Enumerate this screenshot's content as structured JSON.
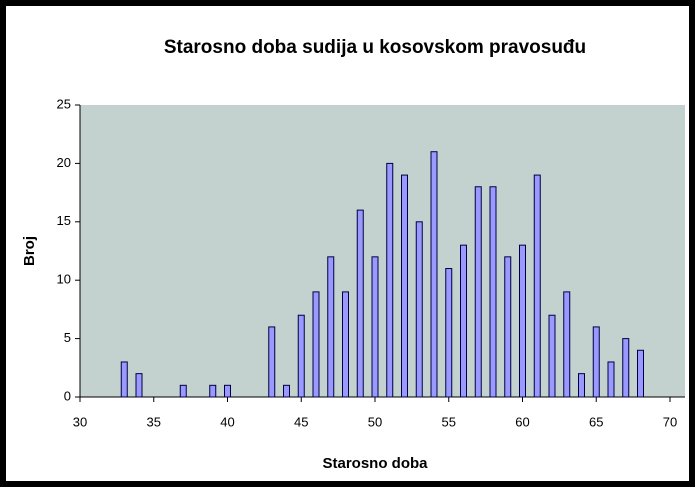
{
  "chart_data": {
    "type": "bar",
    "title": "Starosno doba sudija u kosovskom pravosuđu",
    "x_label": "Starosno doba",
    "y_label": "Broj",
    "x": [
      33,
      34,
      37,
      39,
      40,
      43,
      44,
      45,
      46,
      47,
      48,
      49,
      50,
      51,
      52,
      53,
      54,
      55,
      56,
      57,
      58,
      59,
      60,
      61,
      62,
      63,
      64,
      65,
      66,
      67,
      68
    ],
    "values": [
      3,
      2,
      1,
      1,
      1,
      6,
      1,
      7,
      9,
      12,
      9,
      16,
      12,
      20,
      19,
      15,
      21,
      11,
      13,
      18,
      18,
      12,
      13,
      19,
      7,
      9,
      2,
      6,
      3,
      5,
      4
    ],
    "color": "#9999ff",
    "xlim": [
      30,
      70
    ],
    "xticks": [
      30,
      35,
      40,
      45,
      50,
      55,
      60,
      65,
      70
    ],
    "ylim": [
      0,
      25
    ],
    "yticks": [
      0,
      5,
      10,
      15,
      20,
      25
    ]
  }
}
